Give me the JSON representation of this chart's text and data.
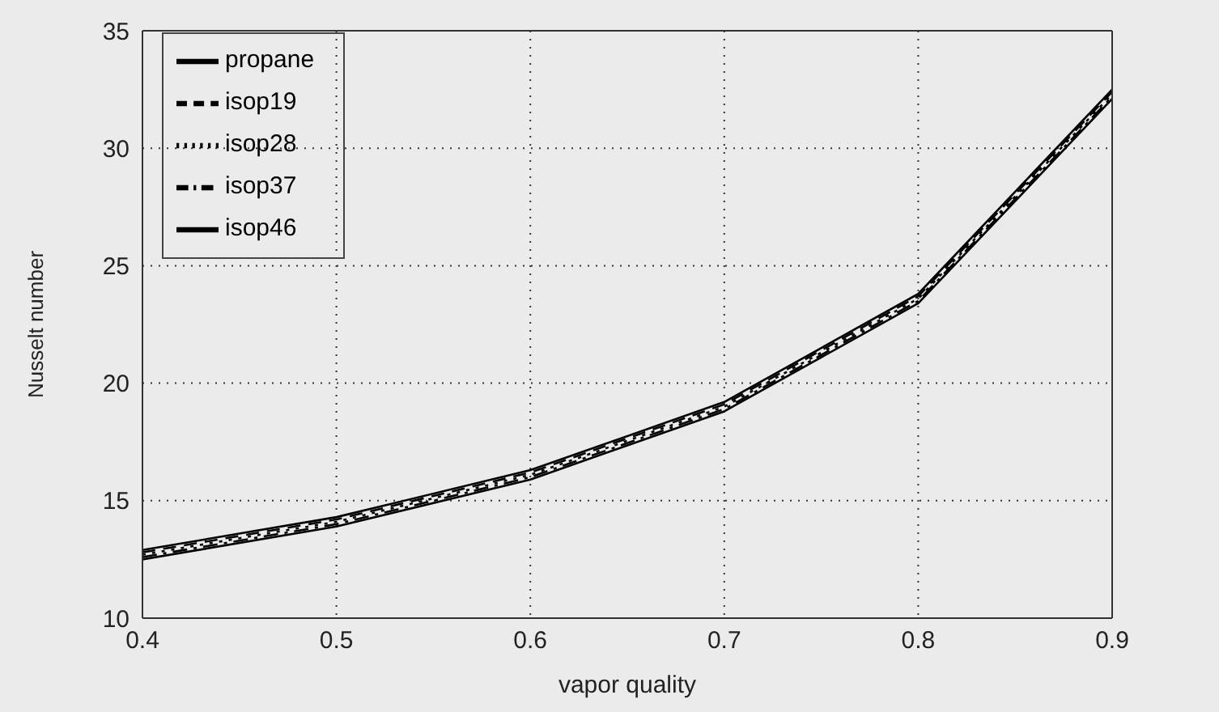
{
  "chart_data": {
    "type": "line",
    "xlabel": "vapor quality",
    "ylabel": "Nusselt number",
    "x": [
      0.4,
      0.5,
      0.6,
      0.7,
      0.8,
      0.9
    ],
    "series": [
      {
        "name": "propane",
        "color": "#000000",
        "line_style": "solid",
        "values": [
          12.9,
          14.3,
          16.3,
          19.2,
          23.8,
          32.5
        ]
      },
      {
        "name": "isop19",
        "color": "#000000",
        "line_style": "dashed",
        "values": [
          12.8,
          14.2,
          16.2,
          19.1,
          23.7,
          32.4
        ]
      },
      {
        "name": "isop28",
        "color": "#000000",
        "line_style": "dotted",
        "values": [
          12.7,
          14.1,
          16.1,
          19.0,
          23.6,
          32.3
        ]
      },
      {
        "name": "isop37",
        "color": "#000000",
        "line_style": "dashdot",
        "values": [
          12.6,
          14.0,
          16.0,
          18.9,
          23.5,
          32.2
        ]
      },
      {
        "name": "isop46",
        "color": "#000000",
        "line_style": "solid",
        "values": [
          12.5,
          13.9,
          15.9,
          18.8,
          23.4,
          32.1
        ]
      }
    ],
    "xlim": [
      0.4,
      0.9
    ],
    "xticks": [
      0.4,
      0.5,
      0.6,
      0.7,
      0.8,
      0.9
    ],
    "ylim": [
      10,
      35
    ],
    "yticks": [
      10,
      15,
      20,
      25,
      30,
      35
    ],
    "grid": true,
    "legend": "top left",
    "marker": "none"
  }
}
